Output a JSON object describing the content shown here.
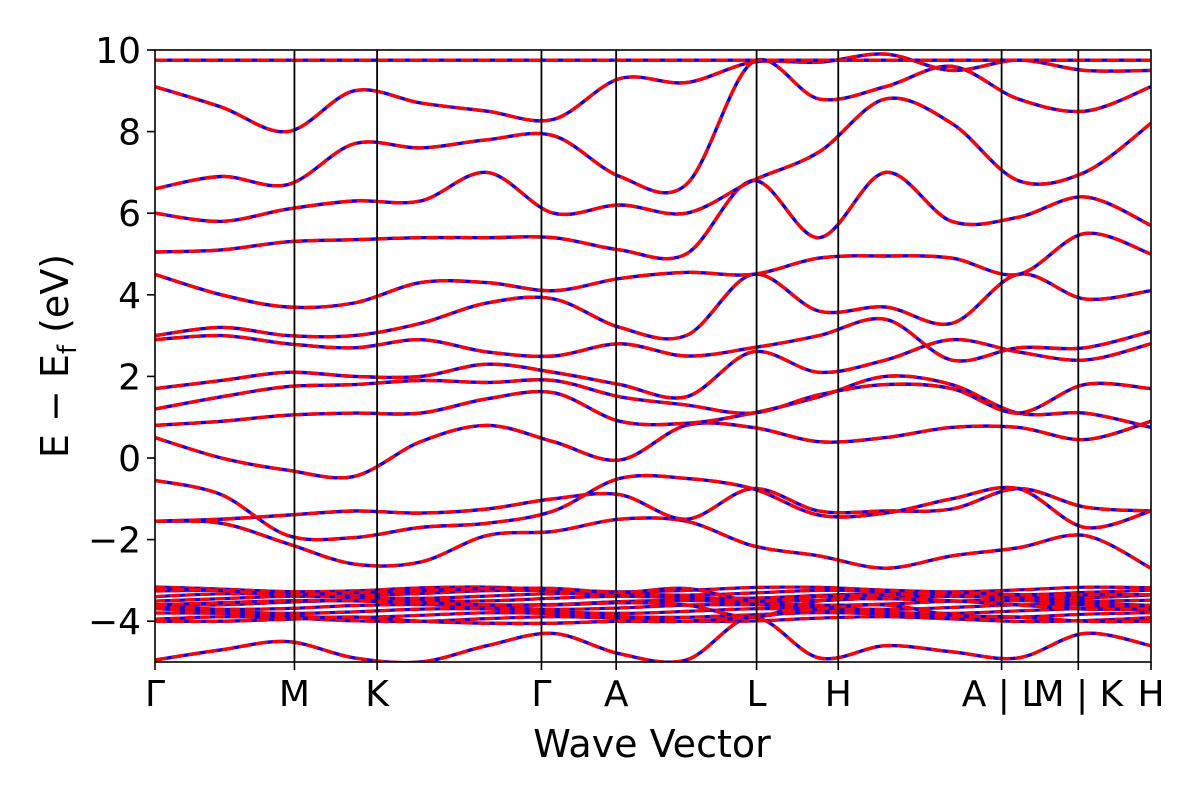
{
  "chart_data": {
    "type": "line",
    "title": "",
    "xlabel": "Wave Vector",
    "ylabel": {
      "main": "E − E",
      "subscript": "f",
      "unit": " (eV)"
    },
    "ylim": [
      -5,
      10
    ],
    "yticks": [
      -4,
      -2,
      0,
      2,
      4,
      6,
      8,
      10
    ],
    "ytick_labels": [
      "−4",
      "−2",
      "0",
      "2",
      "4",
      "6",
      "8",
      "10"
    ],
    "kpath": {
      "labels": [
        "Γ",
        "M",
        "K",
        "Γ",
        "A",
        "L",
        "H",
        "A | L",
        "M | K",
        "H"
      ],
      "positions": [
        0,
        0.14,
        0.223,
        0.388,
        0.463,
        0.604,
        0.686,
        0.85,
        0.927,
        1.0
      ]
    },
    "grid": false,
    "legend": "none",
    "series": [
      {
        "color": "#0000ff",
        "style": "solid"
      },
      {
        "color": "#ff0000",
        "style": "dashed"
      }
    ],
    "bands": [
      [
        -4.95,
        -4.7,
        -4.5,
        -4.9,
        -5.0,
        -4.6,
        -4.3,
        -4.8,
        -4.95,
        -3.9,
        -4.9,
        -4.6,
        -4.75,
        -4.9,
        -4.3,
        -4.6
      ],
      [
        -4.0,
        -4.0,
        -3.95,
        -3.9,
        -4.0,
        -4.05,
        -4.05,
        -4.0,
        -4.0,
        -3.9,
        -3.7,
        -3.6,
        -3.85,
        -3.9,
        -4.0,
        -4.0
      ],
      [
        -3.6,
        -3.55,
        -3.5,
        -3.5,
        -3.55,
        -3.6,
        -3.6,
        -3.55,
        -3.6,
        -3.9,
        -3.5,
        -3.45,
        -3.5,
        -3.6,
        -3.7,
        -3.7
      ],
      [
        -3.2,
        -3.25,
        -3.35,
        -3.3,
        -3.25,
        -3.2,
        -3.2,
        -3.3,
        -3.2,
        -3.5,
        -3.4,
        -3.35,
        -3.3,
        -3.35,
        -3.35,
        -3.35
      ],
      [
        -1.55,
        -1.6,
        -2.1,
        -2.6,
        -2.55,
        -1.9,
        -1.8,
        -1.5,
        -1.55,
        -2.15,
        -2.4,
        -2.7,
        -2.4,
        -2.2,
        -1.9,
        -2.7
      ],
      [
        -1.55,
        -1.5,
        -1.4,
        -1.3,
        -1.35,
        -1.25,
        -1.0,
        -0.9,
        -1.5,
        -0.75,
        -1.3,
        -1.3,
        -1.25,
        -0.75,
        -1.2,
        -1.3
      ],
      [
        -0.55,
        -0.9,
        -1.9,
        -1.95,
        -1.7,
        -1.6,
        -1.3,
        -0.5,
        -0.5,
        -0.75,
        -1.4,
        -1.35,
        -1.0,
        -0.75,
        -1.7,
        -1.3
      ],
      [
        0.5,
        0.0,
        -0.3,
        -0.45,
        0.4,
        0.8,
        0.4,
        -0.05,
        0.8,
        0.75,
        0.4,
        0.5,
        0.75,
        0.75,
        0.45,
        0.9
      ],
      [
        0.8,
        0.9,
        1.05,
        1.1,
        1.1,
        1.45,
        1.6,
        0.9,
        0.85,
        1.1,
        1.5,
        2.0,
        1.8,
        1.1,
        1.1,
        0.75
      ],
      [
        1.2,
        1.5,
        1.75,
        1.8,
        1.9,
        1.85,
        1.9,
        1.5,
        1.3,
        1.1,
        1.55,
        1.8,
        1.7,
        1.1,
        1.8,
        1.7
      ],
      [
        1.7,
        1.9,
        2.1,
        2.0,
        2.0,
        2.3,
        2.1,
        1.8,
        1.5,
        2.6,
        2.1,
        2.4,
        2.9,
        2.6,
        2.4,
        2.8
      ],
      [
        2.9,
        3.0,
        2.8,
        2.7,
        2.9,
        2.6,
        2.5,
        2.8,
        2.5,
        2.7,
        3.0,
        3.4,
        2.4,
        2.7,
        2.7,
        3.1
      ],
      [
        3.0,
        3.2,
        3.0,
        3.0,
        3.3,
        3.8,
        3.9,
        3.2,
        3.0,
        4.5,
        3.6,
        3.7,
        3.3,
        4.5,
        3.9,
        4.1
      ],
      [
        4.5,
        4.0,
        3.7,
        3.8,
        4.3,
        4.3,
        4.1,
        4.4,
        4.55,
        4.5,
        4.9,
        4.95,
        4.9,
        4.5,
        5.5,
        5.0
      ],
      [
        5.05,
        5.1,
        5.3,
        5.35,
        5.4,
        5.4,
        5.4,
        5.1,
        5.0,
        6.8,
        5.4,
        7.0,
        5.8,
        5.9,
        6.4,
        5.7
      ],
      [
        6.0,
        5.8,
        6.1,
        6.3,
        6.3,
        7.0,
        6.0,
        6.2,
        6.0,
        6.8,
        7.5,
        8.8,
        8.2,
        6.8,
        7.0,
        8.2
      ],
      [
        6.6,
        6.9,
        6.7,
        7.7,
        7.6,
        7.8,
        7.9,
        6.9,
        6.7,
        9.7,
        8.8,
        9.1,
        9.6,
        8.8,
        8.5,
        9.1
      ],
      [
        9.1,
        8.6,
        8.0,
        9.0,
        8.7,
        8.5,
        8.3,
        9.3,
        9.2,
        9.7,
        9.7,
        9.9,
        9.5,
        9.75,
        9.5,
        9.5
      ],
      [
        9.75,
        9.75,
        9.75,
        9.75,
        9.75,
        9.75,
        9.75,
        9.75,
        9.75,
        9.75,
        9.75,
        9.75,
        9.75,
        9.75,
        9.75,
        9.75
      ]
    ]
  }
}
